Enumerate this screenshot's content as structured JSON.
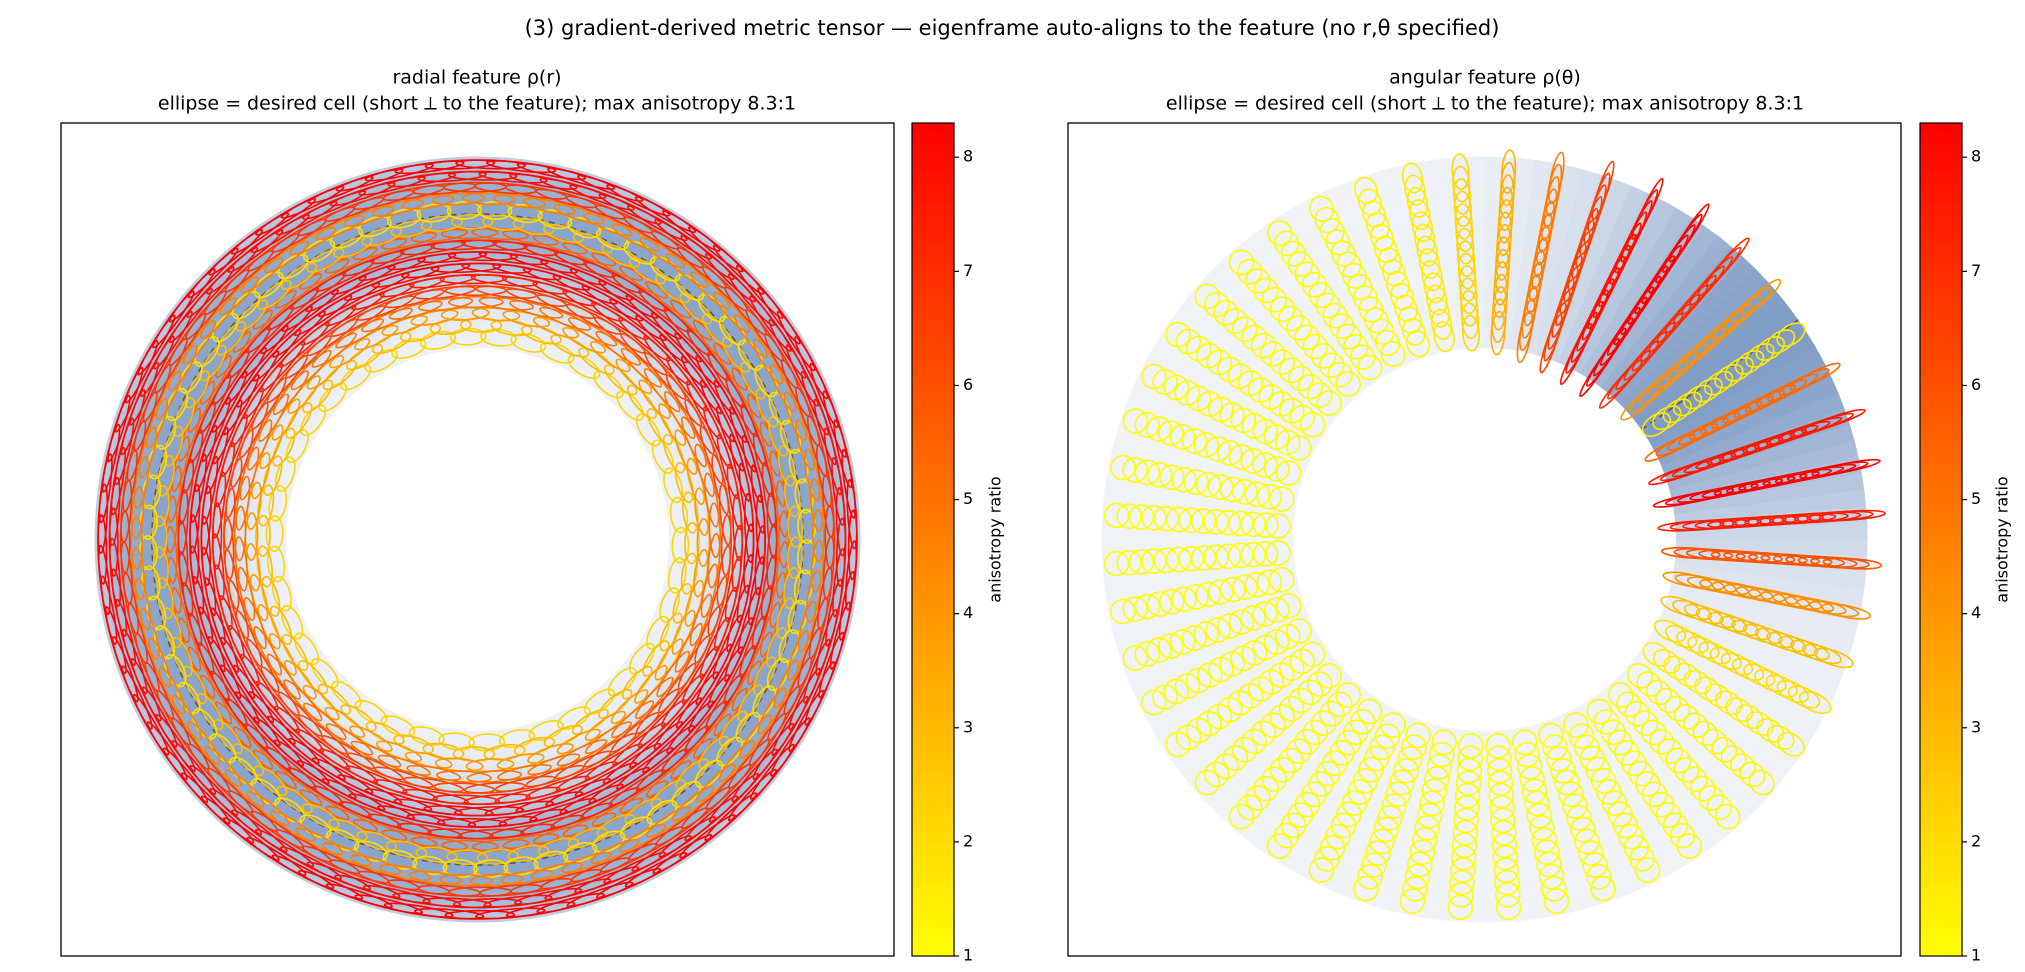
{
  "title": "(3) gradient-derived metric tensor — eigenframe auto-aligns to the feature (no r,θ specified)",
  "chart_data": [
    {
      "type": "radial",
      "title": "radial feature  ρ(r)",
      "subtitle": "ellipse = desired cell (short ⟂ to the feature); max anisotropy 8.3:1",
      "colorbar": {
        "label": "anisotropy ratio",
        "lim": [
          1,
          8.3
        ],
        "ticks": [
          1,
          2,
          3,
          4,
          5,
          6,
          7,
          8
        ],
        "colors": [
          "#ffff00",
          "#ff0000"
        ]
      }
    },
    {
      "type": "angular",
      "title": "angular feature  ρ(θ)",
      "subtitle": "ellipse = desired cell (short ⟂ to the feature); max anisotropy 8.3:1",
      "colorbar": {
        "label": "anisotropy ratio",
        "lim": [
          1,
          8.3
        ],
        "ticks": [
          1,
          2,
          3,
          4,
          5,
          6,
          7,
          8
        ],
        "colors": [
          "#ffff00",
          "#ff0000"
        ]
      }
    }
  ]
}
